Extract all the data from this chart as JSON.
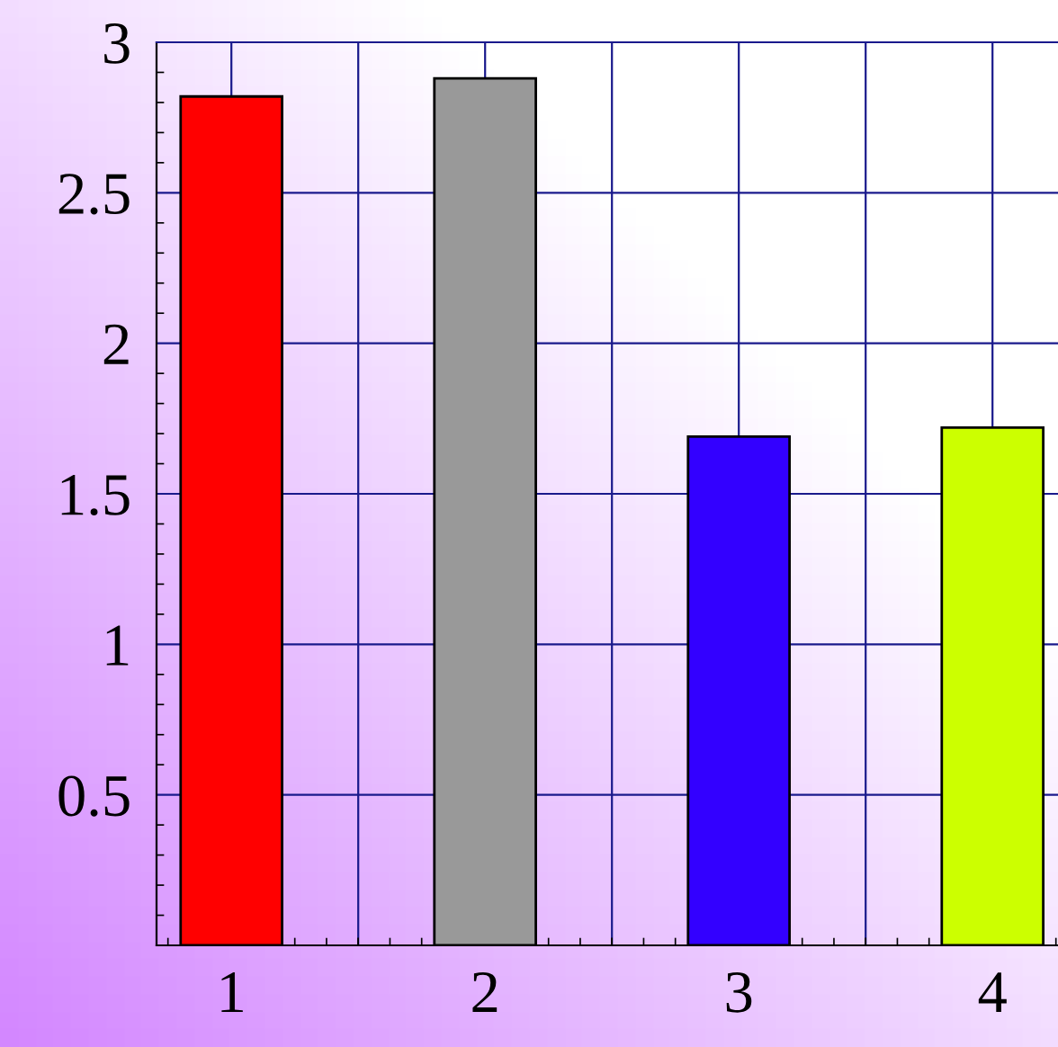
{
  "chart_data": {
    "type": "bar",
    "categories": [
      "1",
      "2",
      "3",
      "4"
    ],
    "values": [
      2.82,
      2.88,
      1.69,
      1.72
    ],
    "colors": [
      "#ff0000",
      "#999999",
      "#3300ff",
      "#ccff00"
    ],
    "ylim": [
      0,
      3
    ],
    "yticks": [
      0.5,
      1,
      1.5,
      2,
      2.5,
      3
    ],
    "grid": true
  }
}
